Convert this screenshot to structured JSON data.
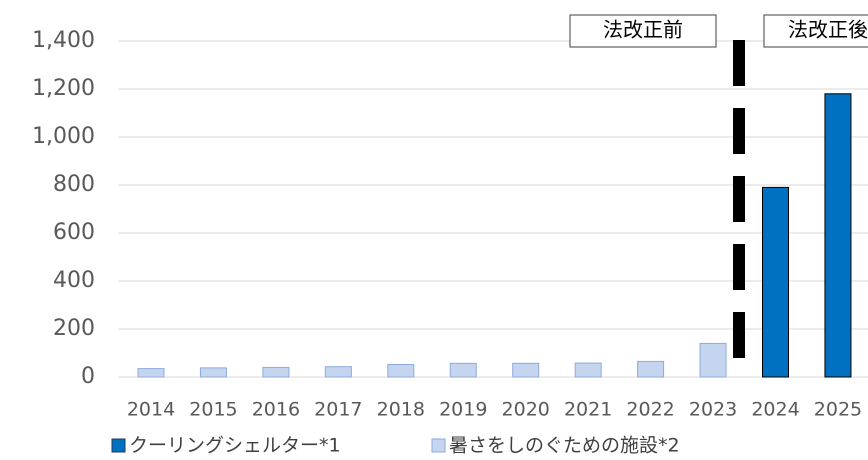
{
  "chart_data": {
    "type": "bar",
    "categories": [
      "2014",
      "2015",
      "2016",
      "2017",
      "2018",
      "2019",
      "2020",
      "2021",
      "2022",
      "2023",
      "2024",
      "2025"
    ],
    "series": [
      {
        "name": "クーリングシェルター*1",
        "color": "#0070c0",
        "values": [
          null,
          null,
          null,
          null,
          null,
          null,
          null,
          null,
          null,
          null,
          790,
          1180
        ]
      },
      {
        "name": "暑さをしのぐための施設*2",
        "color": "#c5d5f0",
        "values": [
          35,
          38,
          40,
          43,
          52,
          57,
          57,
          58,
          65,
          140,
          null,
          null
        ]
      }
    ],
    "annotations": [
      "法改正前",
      "法改正後"
    ],
    "ylim": [
      0,
      1400
    ],
    "yticks": [
      0,
      200,
      400,
      600,
      800,
      {
        "value": 1000,
        "label": "1,000"
      },
      {
        "value": 1200,
        "label": "1,200"
      },
      {
        "value": 1400,
        "label": "1,400"
      }
    ],
    "grid": true
  }
}
